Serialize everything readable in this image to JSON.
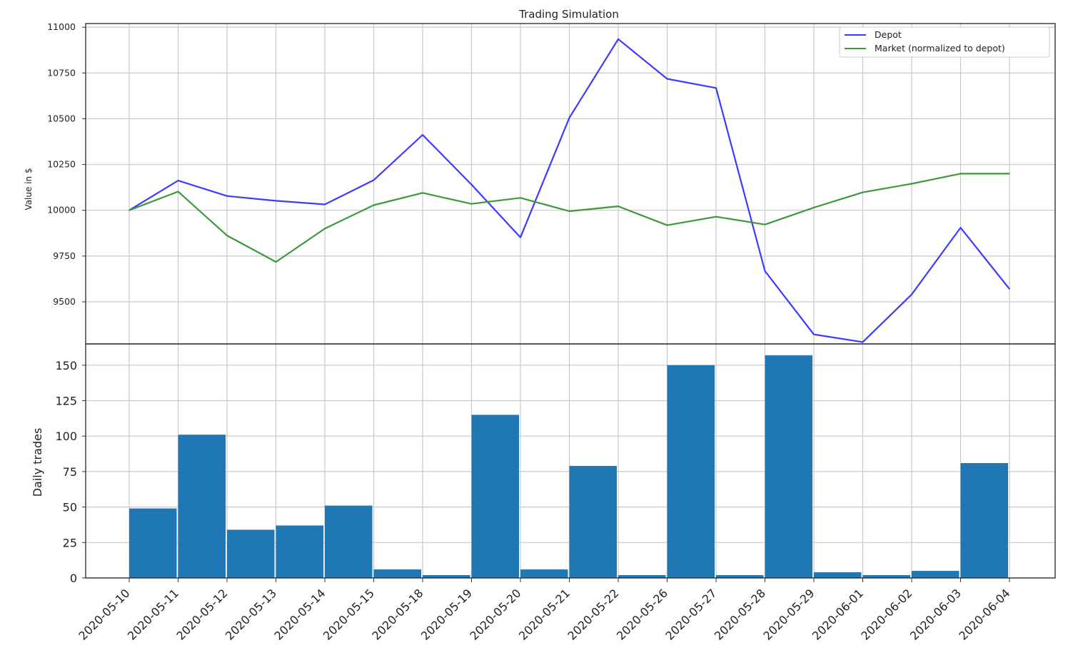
{
  "chart_data": [
    {
      "type": "line",
      "title": "Trading Simulation",
      "xlabel": "",
      "ylabel": "Value in $",
      "categories": [
        "2020-05-10",
        "2020-05-11",
        "2020-05-12",
        "2020-05-13",
        "2020-05-14",
        "2020-05-15",
        "2020-05-18",
        "2020-05-19",
        "2020-05-20",
        "2020-05-21",
        "2020-05-22",
        "2020-05-26",
        "2020-05-27",
        "2020-05-28",
        "2020-05-29",
        "2020-06-01",
        "2020-06-02",
        "2020-06-03",
        "2020-06-04"
      ],
      "ylim": [
        9270,
        11020
      ],
      "yticks": [
        9500,
        9750,
        10000,
        10250,
        10500,
        10750,
        11000
      ],
      "grid": true,
      "legend_position": "top-right",
      "series": [
        {
          "name": "Depot",
          "color": "#3b3bff",
          "values": [
            10000,
            10162,
            10078,
            10052,
            10032,
            10165,
            10412,
            10140,
            9852,
            10505,
            10935,
            10718,
            10668,
            9668,
            9322,
            9280,
            9540,
            9905,
            9570
          ]
        },
        {
          "name": "Market (normalized to depot)",
          "color": "#3a9a3a",
          "values": [
            10000,
            10102,
            9862,
            9718,
            9900,
            10028,
            10095,
            10035,
            10068,
            9995,
            10022,
            9918,
            9965,
            9922,
            10015,
            10098,
            10145,
            10200,
            10200
          ]
        }
      ]
    },
    {
      "type": "bar",
      "title": "",
      "xlabel": "",
      "ylabel": "Daily trades",
      "categories": [
        "2020-05-10",
        "2020-05-11",
        "2020-05-12",
        "2020-05-13",
        "2020-05-14",
        "2020-05-15",
        "2020-05-18",
        "2020-05-19",
        "2020-05-20",
        "2020-05-21",
        "2020-05-22",
        "2020-05-26",
        "2020-05-27",
        "2020-05-28",
        "2020-05-29",
        "2020-06-01",
        "2020-06-02",
        "2020-06-03",
        "2020-06-04"
      ],
      "values": [
        49,
        101,
        34,
        37,
        51,
        6,
        2,
        115,
        6,
        79,
        2,
        150,
        2,
        157,
        4,
        2,
        5,
        81,
        0
      ],
      "ylim": [
        0,
        165
      ],
      "yticks": [
        0,
        25,
        50,
        75,
        100,
        125,
        150
      ],
      "color": "#1f77b4",
      "grid": true
    }
  ]
}
